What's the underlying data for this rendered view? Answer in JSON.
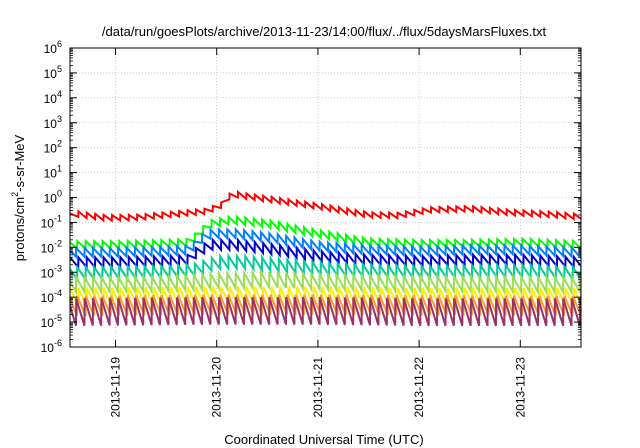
{
  "chart_data": {
    "type": "line",
    "title": "/data/run/goesPlots/archive/2013-11-23/14:00/flux/../flux/5daysMarsFluxes.txt",
    "xlabel": "Coordinated Universal Time (UTC)",
    "ylabel": {
      "prefix": "protons/cm",
      "sup": "2",
      "suffix": "-s-sr-MeV"
    },
    "ylim_exp": [
      -6,
      6
    ],
    "y_scale": "log",
    "y_ticks": [
      {
        "exp": -6
      },
      {
        "exp": -5
      },
      {
        "exp": -4
      },
      {
        "exp": -3
      },
      {
        "exp": -2
      },
      {
        "exp": -1
      },
      {
        "exp": 0
      },
      {
        "exp": 1
      },
      {
        "exp": 2
      },
      {
        "exp": 3
      },
      {
        "exp": 4
      },
      {
        "exp": 5
      },
      {
        "exp": 6
      }
    ],
    "y_tick_base": "10",
    "xlim_days": [
      18.55,
      23.6
    ],
    "x_ticks": [
      {
        "label": "2013-11-19",
        "day": 19
      },
      {
        "label": "2013-11-20",
        "day": 20
      },
      {
        "label": "2013-11-21",
        "day": 21
      },
      {
        "label": "2013-11-22",
        "day": 22
      },
      {
        "label": "2013-11-23",
        "day": 23
      }
    ],
    "grid": true,
    "legend": "none",
    "series": [
      {
        "color": "#ff0000",
        "sawtooth": {
          "period": 0.083,
          "amplitude_decades": 0.22
        },
        "envelope": [
          {
            "day": 18.55,
            "log10": -0.75
          },
          {
            "day": 18.6,
            "log10": -0.65
          },
          {
            "day": 18.9,
            "log10": -0.82
          },
          {
            "day": 19.2,
            "log10": -0.8
          },
          {
            "day": 19.55,
            "log10": -0.68
          },
          {
            "day": 19.9,
            "log10": -0.55
          },
          {
            "day": 20.05,
            "log10": -0.3
          },
          {
            "day": 20.15,
            "log10": 0.15
          },
          {
            "day": 20.3,
            "log10": 0.05
          },
          {
            "day": 20.6,
            "log10": -0.12
          },
          {
            "day": 21.0,
            "log10": -0.35
          },
          {
            "day": 21.5,
            "log10": -0.7
          },
          {
            "day": 21.8,
            "log10": -0.72
          },
          {
            "day": 22.1,
            "log10": -0.5
          },
          {
            "day": 22.5,
            "log10": -0.45
          },
          {
            "day": 22.9,
            "log10": -0.6
          },
          {
            "day": 23.3,
            "log10": -0.68
          },
          {
            "day": 23.6,
            "log10": -0.78
          }
        ]
      },
      {
        "color": "#00ff00",
        "sawtooth": {
          "period": 0.083,
          "amplitude_decades": 0.3
        },
        "envelope": [
          {
            "day": 18.55,
            "log10": -1.9
          },
          {
            "day": 19.0,
            "log10": -1.9
          },
          {
            "day": 19.5,
            "log10": -1.85
          },
          {
            "day": 19.75,
            "log10": -1.8
          },
          {
            "day": 19.8,
            "log10": -1.5
          },
          {
            "day": 19.95,
            "log10": -1.05
          },
          {
            "day": 20.15,
            "log10": -0.9
          },
          {
            "day": 20.5,
            "log10": -1.05
          },
          {
            "day": 21.0,
            "log10": -1.45
          },
          {
            "day": 21.5,
            "log10": -1.8
          },
          {
            "day": 22.0,
            "log10": -1.85
          },
          {
            "day": 22.5,
            "log10": -1.85
          },
          {
            "day": 23.0,
            "log10": -1.8
          },
          {
            "day": 23.6,
            "log10": -1.9
          }
        ]
      },
      {
        "color": "#0080ff",
        "sawtooth": {
          "period": 0.083,
          "amplitude_decades": 0.35
        },
        "envelope": [
          {
            "day": 18.55,
            "log10": -2.2
          },
          {
            "day": 19.0,
            "log10": -2.2
          },
          {
            "day": 19.5,
            "log10": -2.15
          },
          {
            "day": 19.75,
            "log10": -2.1
          },
          {
            "day": 19.8,
            "log10": -1.75
          },
          {
            "day": 19.95,
            "log10": -1.45
          },
          {
            "day": 20.2,
            "log10": -1.45
          },
          {
            "day": 20.6,
            "log10": -1.65
          },
          {
            "day": 21.0,
            "log10": -1.95
          },
          {
            "day": 21.5,
            "log10": -2.1
          },
          {
            "day": 22.0,
            "log10": -2.15
          },
          {
            "day": 22.5,
            "log10": -2.1
          },
          {
            "day": 23.0,
            "log10": -2.1
          },
          {
            "day": 23.6,
            "log10": -2.2
          }
        ]
      },
      {
        "color": "#0000cc",
        "sawtooth": {
          "period": 0.083,
          "amplitude_decades": 0.4
        },
        "envelope": [
          {
            "day": 18.55,
            "log10": -2.6
          },
          {
            "day": 19.0,
            "log10": -2.6
          },
          {
            "day": 19.5,
            "log10": -2.55
          },
          {
            "day": 19.75,
            "log10": -2.5
          },
          {
            "day": 19.8,
            "log10": -2.2
          },
          {
            "day": 19.95,
            "log10": -1.9
          },
          {
            "day": 20.2,
            "log10": -1.9
          },
          {
            "day": 20.6,
            "log10": -2.1
          },
          {
            "day": 21.0,
            "log10": -2.35
          },
          {
            "day": 21.5,
            "log10": -2.5
          },
          {
            "day": 22.0,
            "log10": -2.55
          },
          {
            "day": 22.5,
            "log10": -2.5
          },
          {
            "day": 23.0,
            "log10": -2.5
          },
          {
            "day": 23.6,
            "log10": -2.6
          }
        ]
      },
      {
        "color": "#00cc99",
        "sawtooth": {
          "period": 0.083,
          "amplitude_decades": 0.5
        },
        "envelope": [
          {
            "day": 18.55,
            "log10": -3.05
          },
          {
            "day": 19.5,
            "log10": -3.0
          },
          {
            "day": 19.8,
            "log10": -2.9
          },
          {
            "day": 20.0,
            "log10": -2.6
          },
          {
            "day": 20.3,
            "log10": -2.6
          },
          {
            "day": 20.7,
            "log10": -2.75
          },
          {
            "day": 21.2,
            "log10": -2.9
          },
          {
            "day": 22.0,
            "log10": -3.0
          },
          {
            "day": 23.0,
            "log10": -2.95
          },
          {
            "day": 23.6,
            "log10": -3.05
          }
        ]
      },
      {
        "color": "#99dd55",
        "sawtooth": {
          "period": 0.083,
          "amplitude_decades": 0.6
        },
        "envelope": [
          {
            "day": 18.55,
            "log10": -3.5
          },
          {
            "day": 19.5,
            "log10": -3.45
          },
          {
            "day": 20.0,
            "log10": -3.35
          },
          {
            "day": 20.5,
            "log10": -3.3
          },
          {
            "day": 21.2,
            "log10": -3.4
          },
          {
            "day": 22.0,
            "log10": -3.45
          },
          {
            "day": 23.6,
            "log10": -3.5
          }
        ]
      },
      {
        "color": "#ffee00",
        "sawtooth": {
          "period": 0.083,
          "amplitude_decades": 0.75
        },
        "envelope": [
          {
            "day": 18.55,
            "log10": -4.0
          },
          {
            "day": 20.0,
            "log10": -3.95
          },
          {
            "day": 21.0,
            "log10": -3.95
          },
          {
            "day": 22.0,
            "log10": -4.0
          },
          {
            "day": 23.6,
            "log10": -4.0
          }
        ]
      },
      {
        "color": "#ff9933",
        "sawtooth": {
          "period": 0.083,
          "amplitude_decades": 0.8
        },
        "envelope": [
          {
            "day": 18.55,
            "log10": -4.35
          },
          {
            "day": 20.0,
            "log10": -4.3
          },
          {
            "day": 21.0,
            "log10": -4.3
          },
          {
            "day": 23.6,
            "log10": -4.35
          }
        ]
      },
      {
        "color": "#993366",
        "sawtooth": {
          "period": 0.083,
          "amplitude_decades": 1.1
        },
        "envelope": [
          {
            "day": 18.55,
            "log10": -4.6
          },
          {
            "day": 20.0,
            "log10": -4.55
          },
          {
            "day": 21.0,
            "log10": -4.55
          },
          {
            "day": 22.0,
            "log10": -4.6
          },
          {
            "day": 23.6,
            "log10": -4.6
          }
        ]
      }
    ]
  }
}
